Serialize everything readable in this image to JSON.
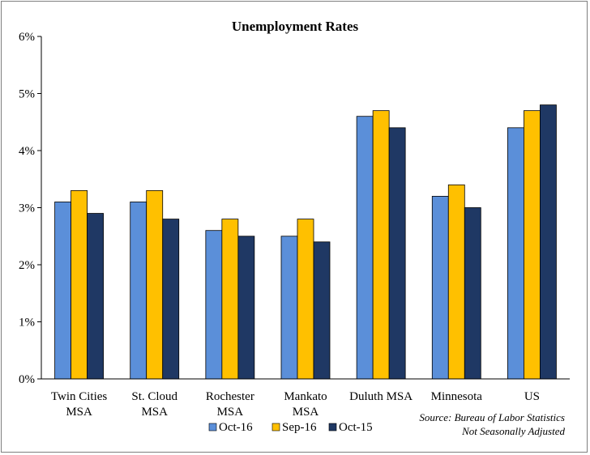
{
  "chart_data": {
    "type": "bar",
    "title": "Unemployment Rates",
    "categories": [
      [
        "Twin Cities",
        "MSA"
      ],
      [
        "St. Cloud",
        "MSA"
      ],
      [
        "Rochester",
        "MSA"
      ],
      [
        "Mankato",
        "MSA"
      ],
      [
        "Duluth MSA"
      ],
      [
        "Minnesota"
      ],
      [
        "US"
      ]
    ],
    "series": [
      {
        "name": "Oct-16",
        "color": "#5b8fd9",
        "values": [
          3.1,
          3.1,
          2.6,
          2.5,
          4.6,
          3.2,
          4.4
        ]
      },
      {
        "name": "Sep-16",
        "color": "#ffc000",
        "values": [
          3.3,
          3.3,
          2.8,
          2.8,
          4.7,
          3.4,
          4.7
        ]
      },
      {
        "name": "Oct-15",
        "color": "#1f3864",
        "values": [
          2.9,
          2.8,
          2.5,
          2.4,
          4.4,
          3.0,
          4.8
        ]
      }
    ],
    "ylim": [
      0,
      6
    ],
    "yticks": [
      0,
      1,
      2,
      3,
      4,
      5,
      6
    ],
    "ytick_labels": [
      "0%",
      "1%",
      "2%",
      "3%",
      "4%",
      "5%",
      "6%"
    ],
    "xlabel": "",
    "ylabel": "",
    "legend": "bottom-center",
    "grid": false,
    "source": [
      "Source: Bureau of Labor Statistics",
      "Not Seasonally Adjusted"
    ]
  }
}
